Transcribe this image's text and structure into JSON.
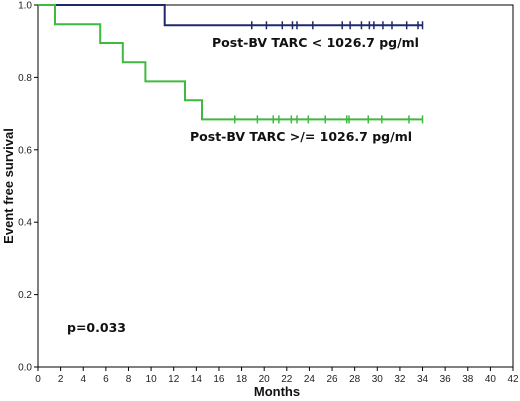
{
  "chart_data": {
    "type": "line",
    "subtype": "kaplan-meier",
    "xlabel": "Months",
    "ylabel": "Event free survival",
    "xlim": [
      0,
      42
    ],
    "ylim": [
      0.0,
      1.0
    ],
    "x_ticks": [
      0,
      2,
      4,
      6,
      8,
      10,
      12,
      14,
      16,
      18,
      20,
      22,
      24,
      26,
      28,
      30,
      32,
      34,
      36,
      38,
      40,
      42
    ],
    "x_tick_labels": [
      "0",
      "2",
      "4",
      "6",
      "8",
      "10",
      "12",
      "14",
      "16",
      "18",
      "20",
      "22",
      "24",
      "26",
      "28",
      "30",
      "32",
      "34",
      "36",
      "38",
      "40",
      "42"
    ],
    "y_ticks": [
      0.0,
      0.2,
      0.4,
      0.6,
      0.8,
      1.0
    ],
    "y_tick_labels": [
      "0.0",
      "0.2",
      "0.4",
      "0.6",
      "0.8",
      "1.0"
    ],
    "grid": false,
    "series": [
      {
        "name": "Post-BV TARC < 1026.7 pg/ml",
        "color": "#1f2a6b",
        "steps": [
          [
            0,
            1.0
          ],
          [
            11.2,
            1.0
          ],
          [
            11.2,
            0.944
          ],
          [
            34.0,
            0.944
          ]
        ],
        "censored_x": [
          18.9,
          20.2,
          21.6,
          22.5,
          22.9,
          24.3,
          26.9,
          27.6,
          28.6,
          29.3,
          29.7,
          30.5,
          31.3,
          32.6,
          33.6,
          34.0
        ]
      },
      {
        "name": "Post-BV TARC >/= 1026.7 pg/ml",
        "color": "#3fb93f",
        "steps": [
          [
            0,
            1.0
          ],
          [
            1.5,
            1.0
          ],
          [
            1.5,
            0.947
          ],
          [
            5.5,
            0.947
          ],
          [
            5.5,
            0.895
          ],
          [
            7.5,
            0.895
          ],
          [
            7.5,
            0.842
          ],
          [
            9.5,
            0.842
          ],
          [
            9.5,
            0.789
          ],
          [
            13.0,
            0.789
          ],
          [
            13.0,
            0.737
          ],
          [
            14.5,
            0.737
          ],
          [
            14.5,
            0.684
          ],
          [
            34.0,
            0.684
          ]
        ],
        "censored_x": [
          17.4,
          19.4,
          20.8,
          21.3,
          22.4,
          22.9,
          23.9,
          25.4,
          27.3,
          27.5,
          29.2,
          30.4,
          32.8,
          34.0
        ]
      }
    ],
    "annotations": {
      "p_value": "p=0.033",
      "label_low": "Post-BV TARC < 1026.7 pg/ml",
      "label_high": "Post-BV TARC >/= 1026.7 pg/ml"
    }
  }
}
